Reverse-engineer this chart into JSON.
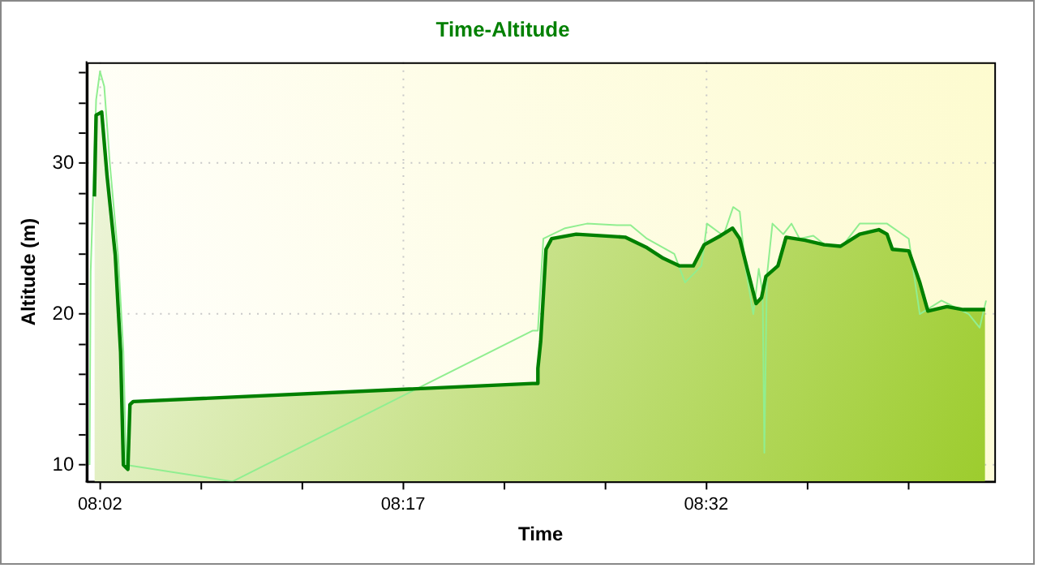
{
  "chart_data": {
    "type": "line",
    "title": "Time-Altitude",
    "xlabel": "Time",
    "ylabel": "Altitude (m)",
    "grid": true,
    "legend": false,
    "marker": "none",
    "xlim": [
      8.0225,
      8.771
    ],
    "xticks": [
      {
        "value": 8.0333,
        "label": "08:02"
      },
      {
        "value": 8.1167,
        "label": null
      },
      {
        "value": 8.2,
        "label": null
      },
      {
        "value": 8.2833,
        "label": "08:17"
      },
      {
        "value": 8.3667,
        "label": null
      },
      {
        "value": 8.45,
        "label": null
      },
      {
        "value": 8.5333,
        "label": "08:32"
      },
      {
        "value": 8.6167,
        "label": null
      },
      {
        "value": 8.7,
        "label": null
      }
    ],
    "ylim": [
      8.9,
      36.7
    ],
    "yticks": [
      10,
      {
        "value": 12,
        "label": null
      },
      {
        "value": 14,
        "label": null
      },
      {
        "value": 16,
        "label": null
      },
      {
        "value": 18,
        "label": null
      },
      20,
      {
        "value": 22,
        "label": null
      },
      {
        "value": 24,
        "label": null
      },
      {
        "value": 26,
        "label": null
      },
      {
        "value": 28,
        "label": null
      },
      30,
      {
        "value": 32,
        "label": null
      },
      {
        "value": 34,
        "label": null
      },
      {
        "value": 36,
        "label": null
      }
    ],
    "series": [
      {
        "type": "area",
        "color": "#008000",
        "x": [
          8.0287,
          8.0301,
          8.0347,
          8.0391,
          8.0459,
          8.0503,
          8.0526,
          8.0563,
          8.058,
          8.0607,
          8.39,
          8.394,
          8.3945,
          8.3968,
          8.4012,
          8.4058,
          8.4261,
          8.4665,
          8.4845,
          8.4979,
          8.5114,
          8.5227,
          8.5317,
          8.5452,
          8.5551,
          8.561,
          8.5678,
          8.5745,
          8.579,
          8.5826,
          8.5925,
          8.5992,
          8.615,
          8.6306,
          8.6441,
          8.6599,
          8.6757,
          8.6825,
          8.6869,
          8.7004,
          8.7095,
          8.7162,
          8.7319,
          8.7454,
          8.7634
        ],
        "values": [
          27.8,
          33.2,
          33.4,
          29.2,
          23.9,
          17.5,
          10,
          9.7,
          14,
          14.2,
          15.4,
          15.4,
          16.4,
          18.2,
          24.3,
          25,
          25.3,
          25.1,
          24.4,
          23.7,
          23.2,
          23.2,
          24.6,
          25.2,
          25.7,
          25,
          22.8,
          20.7,
          21.1,
          22.5,
          23.2,
          25.1,
          24.9,
          24.6,
          24.5,
          25.3,
          25.6,
          25.3,
          24.3,
          24.2,
          22.1,
          20.2,
          20.5,
          20.3,
          20.3
        ]
      },
      {
        "type": "line",
        "color": "#90ee90",
        "x": [
          8.0247,
          8.0256,
          8.0301,
          8.0333,
          8.0368,
          8.0414,
          8.0482,
          8.0526,
          8.0549,
          8.1426,
          8.39,
          8.3945,
          8.399,
          8.417,
          8.435,
          8.4598,
          8.471,
          8.4845,
          8.507,
          8.5159,
          8.5294,
          8.534,
          8.5475,
          8.5556,
          8.561,
          8.5655,
          8.5722,
          8.5767,
          8.5799,
          8.5813,
          8.5834,
          8.588,
          8.5969,
          8.6037,
          8.6104,
          8.6217,
          8.6329,
          8.6464,
          8.6599,
          8.6825,
          8.7004,
          8.7095,
          8.7274,
          8.7499,
          8.7589,
          8.7642
        ],
        "values": [
          10,
          22.8,
          34.2,
          36.1,
          35.1,
          30,
          23.9,
          17.5,
          10,
          8.9,
          18.9,
          18.9,
          25,
          25.7,
          26,
          25.9,
          25.9,
          25,
          24,
          22.1,
          23.2,
          26,
          25.2,
          27.1,
          26.8,
          23.2,
          20,
          23,
          21.4,
          10.8,
          22.5,
          26,
          25.3,
          26,
          25,
          25.2,
          24.5,
          24.6,
          26,
          26,
          25,
          20,
          20.9,
          20,
          19.1,
          20.9
        ]
      }
    ]
  }
}
